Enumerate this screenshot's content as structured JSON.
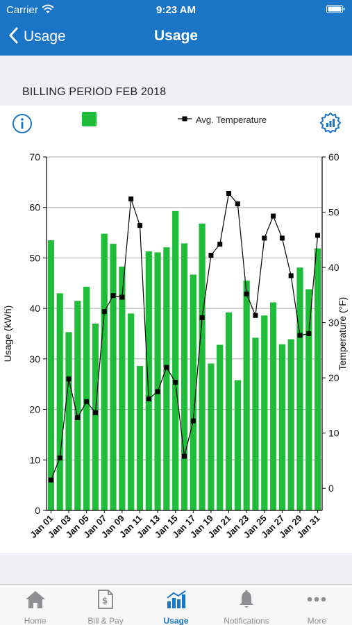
{
  "status_bar": {
    "carrier": "Carrier",
    "time": "9:23 AM"
  },
  "nav": {
    "back_label": "Usage",
    "title": "Usage"
  },
  "billing_period": "BILLING PERIOD FEB 2018",
  "legend": {
    "temperature_label": "Avg. Temperature"
  },
  "colors": {
    "brand": "#1a75c6",
    "usage_bar": "#1fbd3a",
    "background_gray": "#efeff4"
  },
  "icons": {
    "info": "info-icon",
    "settings": "gear-chart-icon"
  },
  "tabs": [
    {
      "label": "Home",
      "icon": "home-icon",
      "active": false
    },
    {
      "label": "Bill & Pay",
      "icon": "bill-icon",
      "active": false
    },
    {
      "label": "Usage",
      "icon": "usage-chart-icon",
      "active": true
    },
    {
      "label": "Notifications",
      "icon": "bell-icon",
      "active": false
    },
    {
      "label": "More",
      "icon": "more-icon",
      "active": false
    }
  ],
  "chart_data": {
    "type": "bar",
    "ylabel": "Usage (kWh)",
    "y2label": "Temperature (°F)",
    "ylim": [
      0,
      70
    ],
    "y2lim": [
      -4,
      60
    ],
    "yticks": [
      0,
      10,
      20,
      30,
      40,
      50,
      60,
      70
    ],
    "y2ticks": [
      0,
      10,
      20,
      30,
      40,
      50,
      60
    ],
    "grid": true,
    "categories": [
      "Jan 01",
      "Jan 02",
      "Jan 03",
      "Jan 04",
      "Jan 05",
      "Jan 06",
      "Jan 07",
      "Jan 08",
      "Jan 09",
      "Jan 10",
      "Jan 11",
      "Jan 12",
      "Jan 13",
      "Jan 14",
      "Jan 15",
      "Jan 16",
      "Jan 17",
      "Jan 18",
      "Jan 19",
      "Jan 20",
      "Jan 21",
      "Jan 22",
      "Jan 23",
      "Jan 24",
      "Jan 25",
      "Jan 26",
      "Jan 27",
      "Jan 28",
      "Jan 29",
      "Jan 30",
      "Jan 31"
    ],
    "tick_labels": [
      "Jan 01",
      "Jan 03",
      "Jan 05",
      "Jan 07",
      "Jan 09",
      "Jan 11",
      "Jan 13",
      "Jan 15",
      "Jan 17",
      "Jan 19",
      "Jan 21",
      "Jan 23",
      "Jan 25",
      "Jan 27",
      "Jan 29",
      "Jan 31"
    ],
    "series": [
      {
        "type": "bar",
        "axis": "left",
        "values": [
          53.5,
          43,
          35.3,
          41.5,
          44.3,
          37,
          54.8,
          52.8,
          48.3,
          39,
          28.6,
          51.3,
          51.1,
          52.1,
          59.3,
          52.9,
          46.7,
          56.8,
          29.1,
          32.8,
          39.2,
          25.8,
          45.5,
          34.2,
          38.6,
          41.2,
          32.9,
          33.9,
          48.1,
          43.8,
          51.9
        ]
      },
      {
        "type": "line",
        "axis": "right",
        "name": "Avg. Temperature",
        "values": [
          1.5,
          5.5,
          19.8,
          12.8,
          15.7,
          13.7,
          32,
          34.9,
          34.6,
          52.4,
          47.6,
          16.2,
          17.5,
          21.9,
          19.2,
          5.8,
          12.2,
          30.9,
          42.2,
          44.2,
          53.4,
          51.5,
          35.2,
          31.3,
          45.3,
          49.3,
          45.3,
          38.5,
          27.7,
          28,
          45.8
        ]
      }
    ]
  }
}
